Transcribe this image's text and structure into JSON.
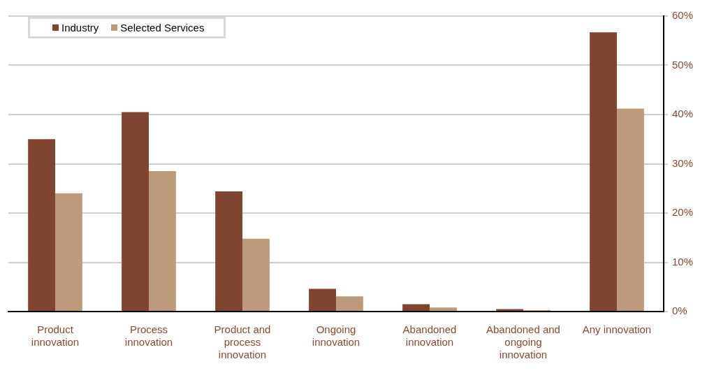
{
  "chart_data": {
    "type": "bar",
    "categories": [
      "Product innovation",
      "Process innovation",
      "Product and process innovation",
      "Ongoing innovation",
      "Abandoned innovation",
      "Abandoned and ongoing innovation",
      "Any innovation"
    ],
    "series": [
      {
        "name": "Industry",
        "color": "#7f4530",
        "values": [
          35,
          40.5,
          24.4,
          4.6,
          1.5,
          0.5,
          56.7
        ]
      },
      {
        "name": "Selected Services",
        "color": "#bb9b7b",
        "values": [
          24,
          28.5,
          14.8,
          3.1,
          0.8,
          0.3,
          41.2
        ]
      }
    ],
    "ylim": [
      0,
      60
    ],
    "yticks": [
      {
        "value": 0,
        "label": "0%"
      },
      {
        "value": 10,
        "label": "10%"
      },
      {
        "value": 20,
        "label": "20%"
      },
      {
        "value": 30,
        "label": "30%"
      },
      {
        "value": 40,
        "label": "40%"
      },
      {
        "value": 50,
        "label": "50%"
      },
      {
        "value": 60,
        "label": "60%"
      }
    ],
    "grid": "y",
    "legend": "top left"
  }
}
